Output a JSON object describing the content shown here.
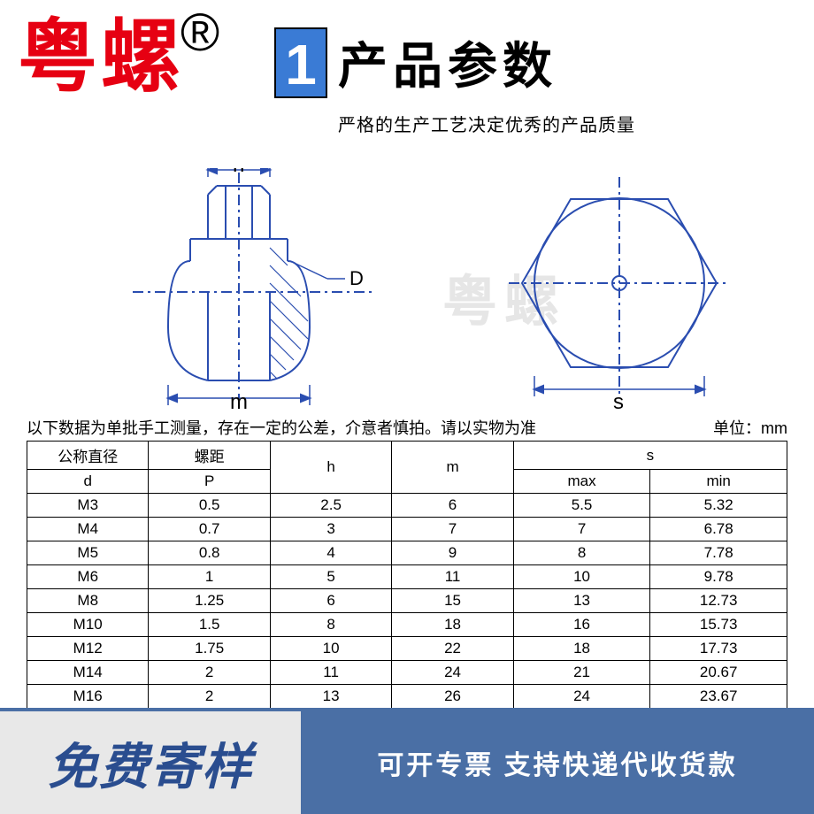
{
  "brand": {
    "name": "粤螺",
    "reg": "®"
  },
  "title": {
    "num": "1",
    "text": "产品参数",
    "subtitle": "严格的生产工艺决定优秀的产品质量"
  },
  "watermark": "粤螺",
  "diagram": {
    "labels": {
      "h": "h",
      "m": "m",
      "s": "s",
      "D": "D"
    },
    "stroke": "#2a4db0",
    "stroke_width": 2
  },
  "note": {
    "left": "以下数据为单批手工测量，存在一定的公差，介意者慎拍。请以实物为准",
    "right": "单位：mm"
  },
  "table": {
    "headers_top": [
      "公称直径",
      "螺距",
      "h",
      "m",
      "s"
    ],
    "headers_sub": [
      "d",
      "P",
      "",
      "",
      "max",
      "min"
    ],
    "col_widths": [
      "16%",
      "16%",
      "16%",
      "16%",
      "18%",
      "18%"
    ],
    "rows": [
      [
        "M3",
        "0.5",
        "2.5",
        "6",
        "5.5",
        "5.32"
      ],
      [
        "M4",
        "0.7",
        "3",
        "7",
        "7",
        "6.78"
      ],
      [
        "M5",
        "0.8",
        "4",
        "9",
        "8",
        "7.78"
      ],
      [
        "M6",
        "1",
        "5",
        "11",
        "10",
        "9.78"
      ],
      [
        "M8",
        "1.25",
        "6",
        "15",
        "13",
        "12.73"
      ],
      [
        "M10",
        "1.5",
        "8",
        "18",
        "16",
        "15.73"
      ],
      [
        "M12",
        "1.75",
        "10",
        "22",
        "18",
        "17.73"
      ],
      [
        "M14",
        "2",
        "11",
        "24",
        "21",
        "20.67"
      ],
      [
        "M16",
        "2",
        "13",
        "26",
        "24",
        "23.67"
      ]
    ]
  },
  "footer": {
    "left": "免费寄样",
    "right": "可开专票 支持快递代收货款"
  },
  "colors": {
    "brand_red": "#e60012",
    "title_blue": "#3a7bd5",
    "diagram_blue": "#2a4db0",
    "footer_bar": "#4a6fa5",
    "footer_text_blue": "#2a4d8f",
    "footer_bg": "#e8e8e8",
    "watermark_gray": "#e6e6e6"
  }
}
